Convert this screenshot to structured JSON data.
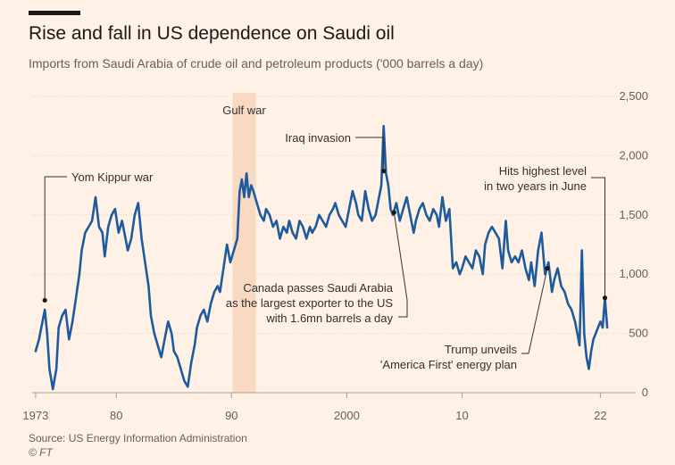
{
  "header": {
    "title": "Rise and fall in US dependence on Saudi oil",
    "subtitle": "Imports from Saudi Arabia of crude oil and petroleum products ('000 barrels a day)"
  },
  "footer": {
    "source": "Source: US Energy Information Administration",
    "credit": "© FT"
  },
  "colors": {
    "line": "#1d5a9e",
    "shade": "#f9d9c1",
    "grid": "#e0d5cc",
    "text": "#33302e",
    "muted": "#66605c",
    "annotation_line": "#33302e"
  },
  "chart_data": {
    "type": "line",
    "title": "Rise and fall in US dependence on Saudi oil",
    "ylabel": "'000 barrels a day",
    "xlim": [
      1972.7,
      2022.9
    ],
    "ylim": [
      0,
      2500
    ],
    "yticks": [
      0,
      500,
      1000,
      1500,
      2000,
      2500
    ],
    "ytick_labels": [
      "0",
      "500",
      "1,000",
      "1,500",
      "2,000",
      "2,500"
    ],
    "xticks": [
      1973,
      1980,
      1990,
      2000,
      2010,
      2022
    ],
    "xtick_labels": [
      "1973",
      "80",
      "90",
      "2000",
      "10",
      "22"
    ],
    "grid": true,
    "shaded_period": {
      "label": "Gulf war",
      "start": 1990.1,
      "end": 1992.1
    },
    "series": [
      {
        "name": "Imports from Saudi Arabia",
        "x": [
          1973.0,
          1973.3,
          1973.6,
          1973.8,
          1974.0,
          1974.2,
          1974.5,
          1974.8,
          1975.0,
          1975.3,
          1975.6,
          1975.9,
          1976.2,
          1976.5,
          1976.8,
          1977.0,
          1977.3,
          1977.6,
          1977.9,
          1978.2,
          1978.5,
          1978.8,
          1979.0,
          1979.3,
          1979.6,
          1979.9,
          1980.2,
          1980.5,
          1980.8,
          1981.0,
          1981.3,
          1981.6,
          1981.9,
          1982.2,
          1982.5,
          1982.8,
          1983.0,
          1983.3,
          1983.6,
          1983.9,
          1984.2,
          1984.5,
          1984.8,
          1985.0,
          1985.3,
          1985.6,
          1985.9,
          1986.2,
          1986.5,
          1986.8,
          1987.0,
          1987.3,
          1987.6,
          1987.9,
          1988.2,
          1988.5,
          1988.8,
          1989.0,
          1989.3,
          1989.6,
          1989.9,
          1990.2,
          1990.5,
          1990.7,
          1990.9,
          1991.1,
          1991.3,
          1991.5,
          1991.7,
          1991.9,
          1992.2,
          1992.5,
          1992.8,
          1993.0,
          1993.3,
          1993.6,
          1993.9,
          1994.2,
          1994.5,
          1994.8,
          1995.0,
          1995.3,
          1995.6,
          1995.9,
          1996.2,
          1996.5,
          1996.8,
          1997.0,
          1997.3,
          1997.6,
          1997.9,
          1998.2,
          1998.5,
          1998.8,
          1999.0,
          1999.3,
          1999.6,
          1999.9,
          2000.2,
          2000.5,
          2000.8,
          2001.0,
          2001.3,
          2001.6,
          2001.9,
          2002.2,
          2002.5,
          2002.8,
          2003.0,
          2003.2,
          2003.4,
          2003.6,
          2003.8,
          2004.0,
          2004.3,
          2004.6,
          2004.9,
          2005.2,
          2005.5,
          2005.8,
          2006.0,
          2006.3,
          2006.6,
          2006.9,
          2007.2,
          2007.5,
          2007.8,
          2008.0,
          2008.3,
          2008.6,
          2008.9,
          2009.2,
          2009.5,
          2009.8,
          2010.0,
          2010.3,
          2010.6,
          2010.9,
          2011.2,
          2011.5,
          2011.8,
          2012.0,
          2012.3,
          2012.6,
          2012.9,
          2013.2,
          2013.5,
          2013.8,
          2014.0,
          2014.3,
          2014.6,
          2014.9,
          2015.2,
          2015.5,
          2015.8,
          2016.0,
          2016.3,
          2016.6,
          2016.9,
          2017.2,
          2017.5,
          2017.8,
          2018.0,
          2018.3,
          2018.6,
          2018.9,
          2019.2,
          2019.5,
          2019.8,
          2020.0,
          2020.2,
          2020.4,
          2020.6,
          2020.8,
          2021.0,
          2021.2,
          2021.4,
          2021.6,
          2021.8,
          2022.0,
          2022.2,
          2022.4,
          2022.6
        ],
        "values": [
          350,
          450,
          600,
          700,
          500,
          200,
          30,
          200,
          550,
          650,
          700,
          450,
          600,
          800,
          1000,
          1200,
          1350,
          1400,
          1450,
          1650,
          1400,
          1350,
          1150,
          1400,
          1500,
          1550,
          1350,
          1450,
          1300,
          1200,
          1300,
          1500,
          1600,
          1300,
          1100,
          900,
          650,
          500,
          400,
          300,
          450,
          600,
          500,
          350,
          300,
          200,
          100,
          50,
          250,
          400,
          550,
          650,
          700,
          600,
          750,
          850,
          900,
          850,
          1050,
          1250,
          1100,
          1200,
          1300,
          1700,
          1800,
          1650,
          1850,
          1650,
          1750,
          1700,
          1600,
          1500,
          1450,
          1550,
          1500,
          1400,
          1450,
          1300,
          1400,
          1350,
          1450,
          1350,
          1300,
          1450,
          1400,
          1300,
          1400,
          1350,
          1400,
          1500,
          1450,
          1400,
          1500,
          1550,
          1600,
          1500,
          1450,
          1400,
          1550,
          1700,
          1600,
          1500,
          1450,
          1700,
          1550,
          1450,
          1500,
          1650,
          1750,
          2250,
          1850,
          1750,
          1550,
          1500,
          1600,
          1450,
          1550,
          1650,
          1500,
          1350,
          1450,
          1550,
          1600,
          1500,
          1450,
          1550,
          1500,
          1400,
          1650,
          1450,
          1550,
          1050,
          1100,
          1000,
          1050,
          1150,
          1100,
          1050,
          1200,
          1150,
          1000,
          1250,
          1350,
          1400,
          1350,
          1300,
          1050,
          1450,
          1200,
          1100,
          1150,
          1100,
          1200,
          1050,
          950,
          1100,
          900,
          1200,
          1350,
          1000,
          1100,
          850,
          950,
          1050,
          900,
          850,
          750,
          700,
          600,
          500,
          400,
          1200,
          500,
          300,
          200,
          350,
          450,
          500,
          550,
          600,
          550,
          800,
          550
        ]
      }
    ],
    "annotations": [
      {
        "id": "yom-kippur",
        "lines": [
          "Yom Kippur war"
        ],
        "x": 1973.8,
        "y": 780
      },
      {
        "id": "gulf-war",
        "lines": [
          "Gulf war"
        ],
        "x": 1991.1,
        "y": null
      },
      {
        "id": "iraq-invasion",
        "lines": [
          "Iraq invasion"
        ],
        "x": 2003.2,
        "y": 1870
      },
      {
        "id": "canada-passes",
        "lines": [
          "Canada passes Saudi Arabia",
          "as the largest exporter to the US",
          "with 1.6mn barrels a day"
        ],
        "x": 2004.1,
        "y": 1520
      },
      {
        "id": "trump-plan",
        "lines": [
          "Trump unveils",
          "'America First' energy plan"
        ],
        "x": 2017.4,
        "y": 1050
      },
      {
        "id": "highest-level",
        "lines": [
          "Hits highest level",
          "in two years in June"
        ],
        "x": 2022.4,
        "y": 800
      }
    ]
  }
}
